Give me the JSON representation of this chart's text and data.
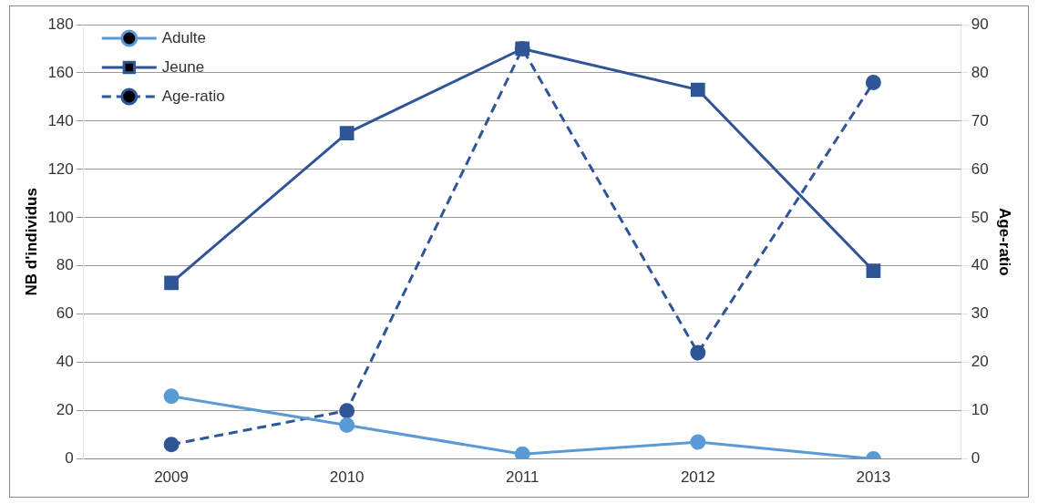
{
  "chart_data": {
    "type": "line",
    "categories": [
      "2009",
      "2010",
      "2011",
      "2012",
      "2013"
    ],
    "ylabel": "NB d'individus",
    "y2label": "Age-ratio",
    "ylim": [
      0,
      180
    ],
    "yticks": [
      0,
      20,
      40,
      60,
      80,
      100,
      120,
      140,
      160,
      180
    ],
    "y2lim": [
      0,
      90
    ],
    "y2ticks": [
      0,
      10,
      20,
      30,
      40,
      50,
      60,
      70,
      80,
      90
    ],
    "grid": "y",
    "legend": "top left",
    "series": [
      {
        "name": "Adulte",
        "color": "#5b9bd5",
        "marker": "circle",
        "line_style": "solid",
        "values": [
          26,
          14,
          2,
          7,
          0
        ]
      },
      {
        "name": "Jeune",
        "color": "#2f5597",
        "marker": "square",
        "line_style": "solid",
        "values": [
          73,
          135,
          170,
          153,
          78
        ]
      },
      {
        "name": "Age-ratio",
        "color": "#2f5597",
        "marker": "circle",
        "line_style": "dashed",
        "axis": "y2",
        "values": [
          3,
          10,
          85,
          22,
          78
        ]
      }
    ]
  }
}
